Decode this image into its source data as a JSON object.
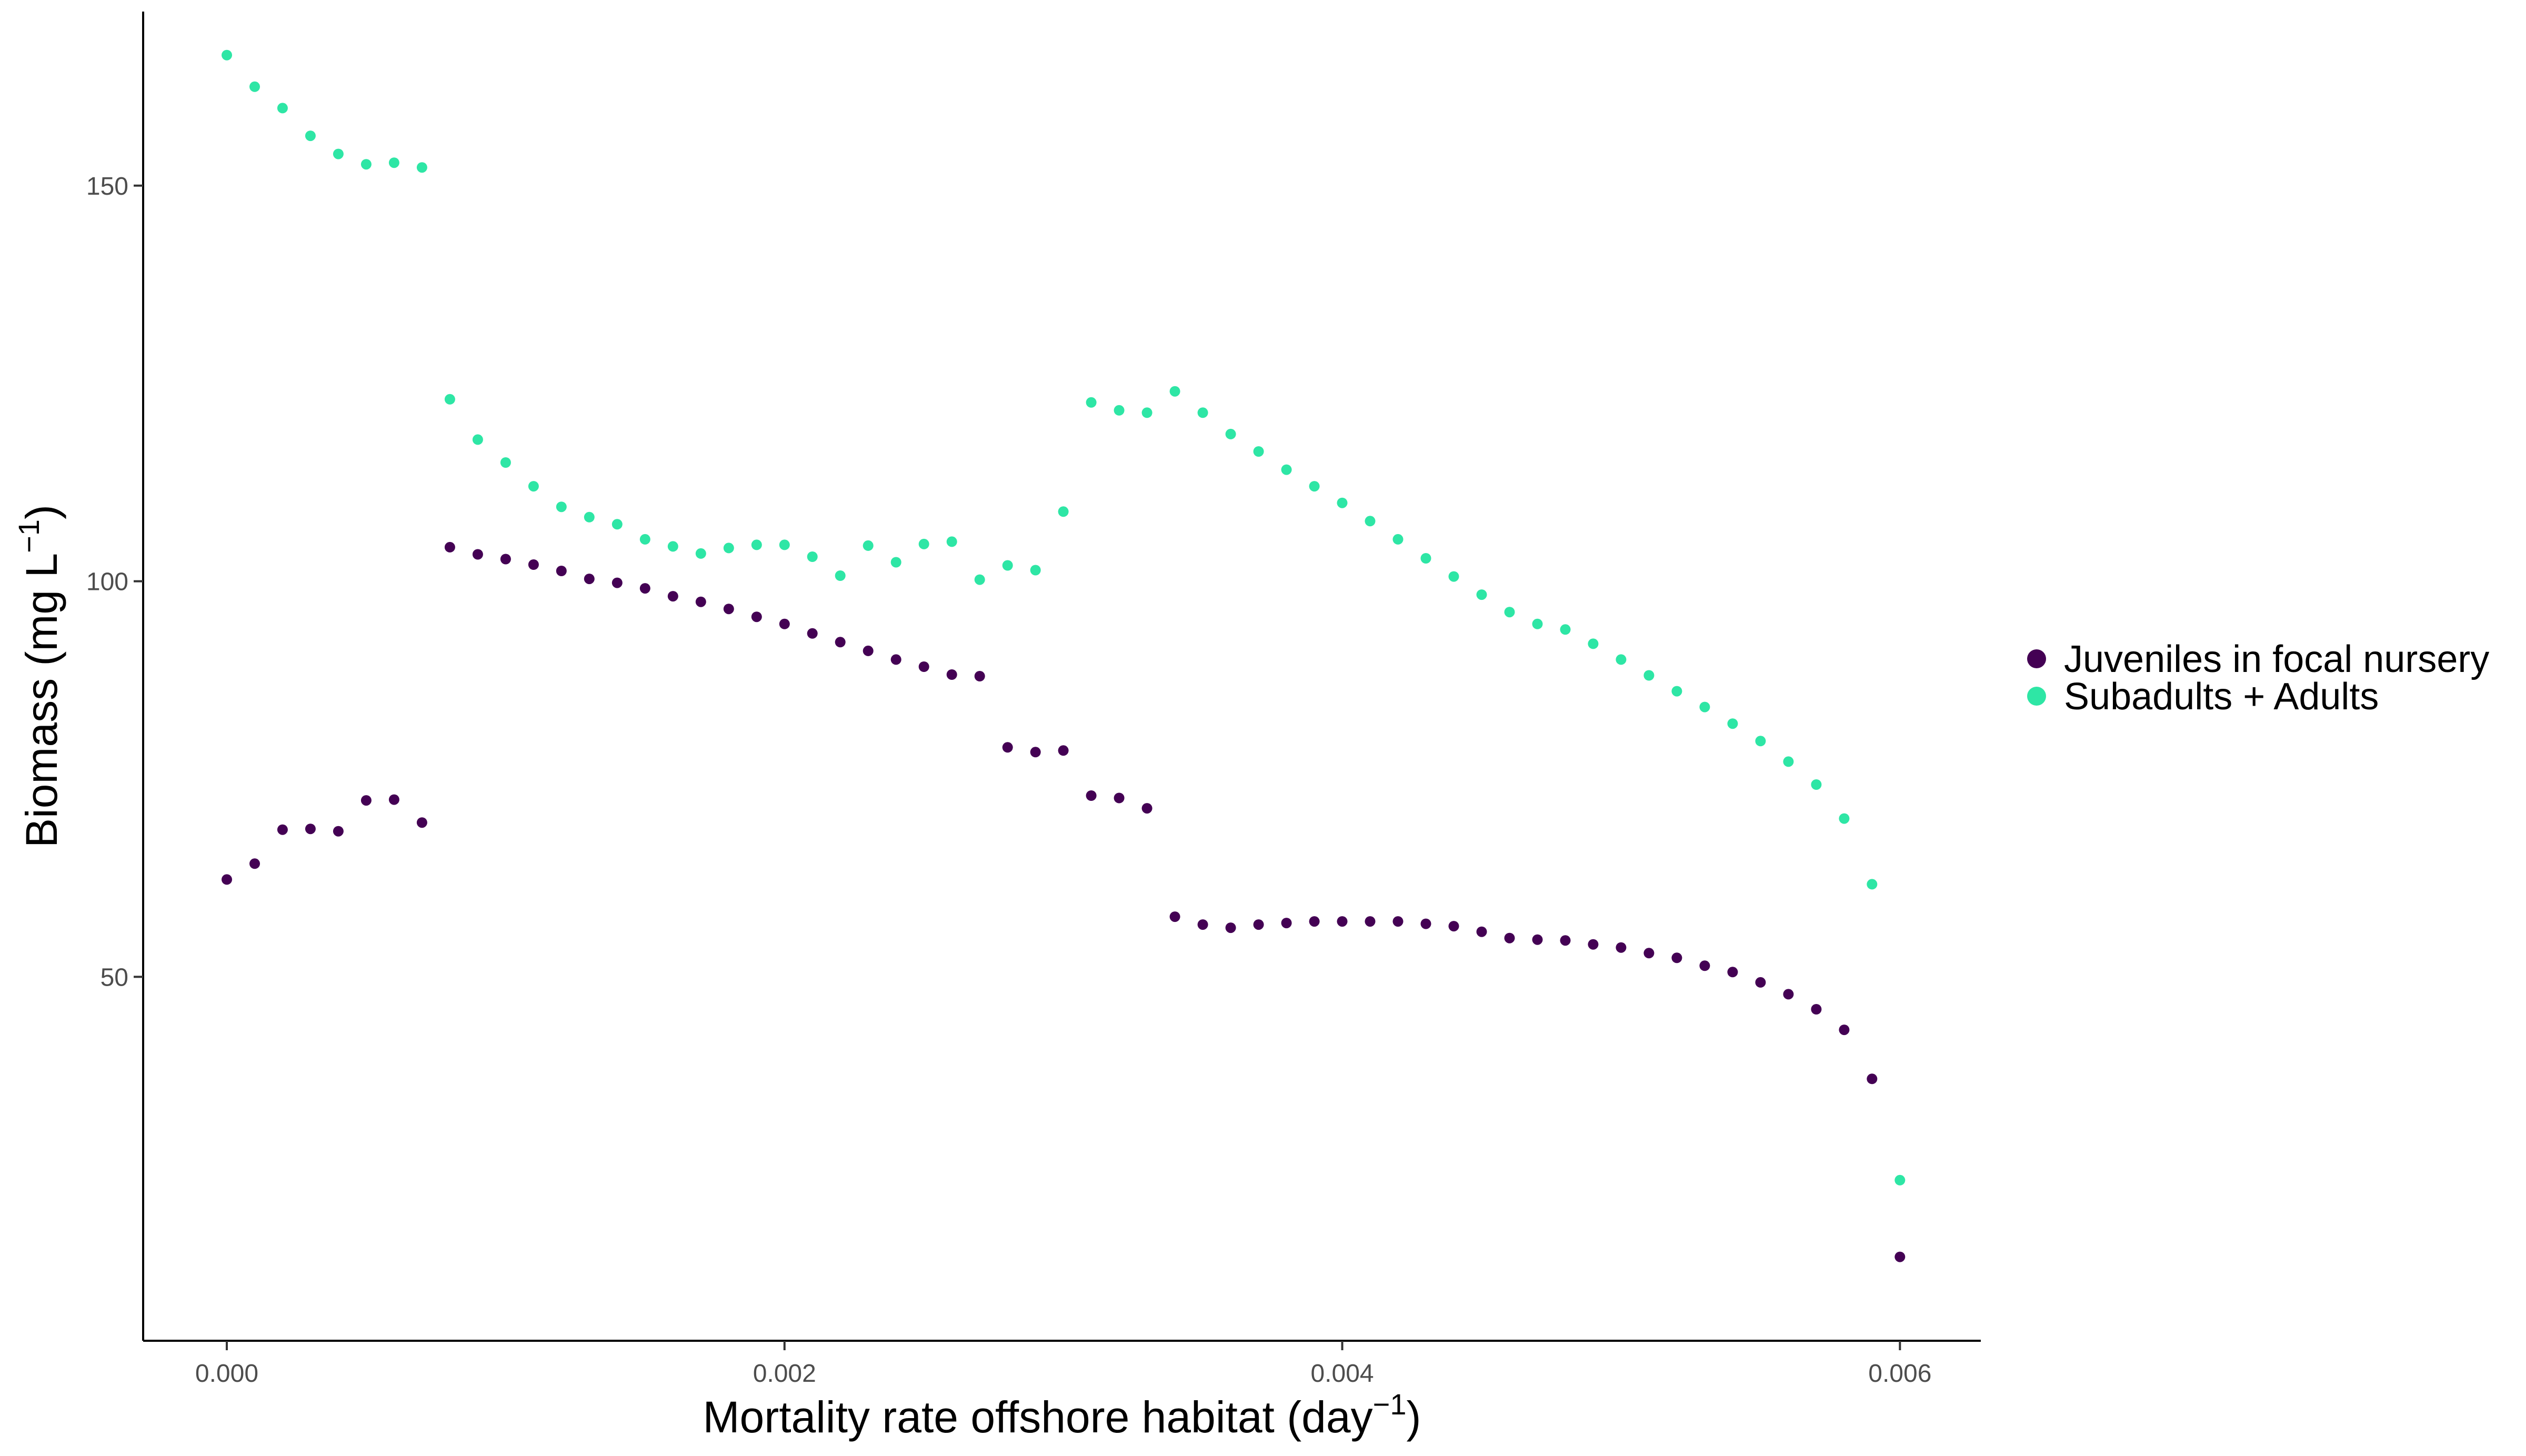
{
  "chart_data": {
    "type": "scatter",
    "xlabel": {
      "prefix": "Mortality rate offshore habitat (day",
      "sup": "−1",
      "suffix": ")"
    },
    "ylabel": {
      "prefix": "Biomass (mg L",
      "sup": "−1",
      "suffix": ")"
    },
    "xlim": [
      -0.0003,
      0.00629
    ],
    "ylim": [
      4,
      172
    ],
    "xticks": [
      0.0,
      0.002,
      0.004,
      0.006
    ],
    "xtick_labels": [
      "0.000",
      "0.002",
      "0.004",
      "0.006"
    ],
    "yticks": [
      50,
      100,
      150
    ],
    "ytick_labels": [
      "50",
      "100",
      "150"
    ],
    "grid": false,
    "legend_position": "right",
    "series": [
      {
        "name": "Juveniles in focal nursery",
        "color": "#440154",
        "points": [
          [
            0.0,
            62.3
          ],
          [
            0.0001,
            64.3
          ],
          [
            0.0002,
            68.6
          ],
          [
            0.0003,
            68.7
          ],
          [
            0.0004,
            68.4
          ],
          [
            0.0005,
            72.3
          ],
          [
            0.0006,
            72.4
          ],
          [
            0.0007,
            69.5
          ],
          [
            0.0008,
            104.3
          ],
          [
            0.0009,
            103.4
          ],
          [
            0.001,
            102.8
          ],
          [
            0.0011,
            102.1
          ],
          [
            0.0012,
            101.3
          ],
          [
            0.0013,
            100.3
          ],
          [
            0.0014,
            99.8
          ],
          [
            0.0015,
            99.1
          ],
          [
            0.0016,
            98.1
          ],
          [
            0.0017,
            97.4
          ],
          [
            0.0018,
            96.5
          ],
          [
            0.0019,
            95.5
          ],
          [
            0.002,
            94.6
          ],
          [
            0.0021,
            93.4
          ],
          [
            0.0022,
            92.3
          ],
          [
            0.0023,
            91.2
          ],
          [
            0.0024,
            90.1
          ],
          [
            0.0025,
            89.2
          ],
          [
            0.0026,
            88.2
          ],
          [
            0.0027,
            88.0
          ],
          [
            0.0028,
            79.0
          ],
          [
            0.0029,
            78.4
          ],
          [
            0.003,
            78.6
          ],
          [
            0.0031,
            72.9
          ],
          [
            0.0032,
            72.6
          ],
          [
            0.0033,
            71.3
          ],
          [
            0.0034,
            57.6
          ],
          [
            0.0035,
            56.6
          ],
          [
            0.0036,
            56.2
          ],
          [
            0.0037,
            56.6
          ],
          [
            0.0038,
            56.8
          ],
          [
            0.0039,
            57.0
          ],
          [
            0.004,
            57.0
          ],
          [
            0.0041,
            57.0
          ],
          [
            0.0042,
            57.0
          ],
          [
            0.0043,
            56.7
          ],
          [
            0.0044,
            56.4
          ],
          [
            0.0045,
            55.7
          ],
          [
            0.0046,
            54.9
          ],
          [
            0.0047,
            54.7
          ],
          [
            0.0048,
            54.6
          ],
          [
            0.0049,
            54.1
          ],
          [
            0.005,
            53.7
          ],
          [
            0.0051,
            53.0
          ],
          [
            0.0052,
            52.4
          ],
          [
            0.0053,
            51.4
          ],
          [
            0.0054,
            50.6
          ],
          [
            0.0055,
            49.3
          ],
          [
            0.0056,
            47.8
          ],
          [
            0.0057,
            45.9
          ],
          [
            0.0058,
            43.3
          ],
          [
            0.0059,
            37.1
          ],
          [
            0.006,
            14.6
          ]
        ]
      },
      {
        "name": "Subadults + Adults",
        "color": "#2ee6a5",
        "points": [
          [
            0.0,
            166.5
          ],
          [
            0.0001,
            162.5
          ],
          [
            0.0002,
            159.8
          ],
          [
            0.0003,
            156.3
          ],
          [
            0.0004,
            154.0
          ],
          [
            0.0005,
            152.7
          ],
          [
            0.0006,
            152.9
          ],
          [
            0.0007,
            152.3
          ],
          [
            0.0008,
            123.0
          ],
          [
            0.0009,
            117.9
          ],
          [
            0.001,
            115.0
          ],
          [
            0.0011,
            112.0
          ],
          [
            0.0012,
            109.4
          ],
          [
            0.0013,
            108.1
          ],
          [
            0.0014,
            107.2
          ],
          [
            0.0015,
            105.3
          ],
          [
            0.0016,
            104.4
          ],
          [
            0.0017,
            103.5
          ],
          [
            0.0018,
            104.2
          ],
          [
            0.0019,
            104.6
          ],
          [
            0.002,
            104.6
          ],
          [
            0.0021,
            103.1
          ],
          [
            0.0022,
            100.7
          ],
          [
            0.0023,
            104.5
          ],
          [
            0.0024,
            102.4
          ],
          [
            0.0025,
            104.7
          ],
          [
            0.0026,
            105.0
          ],
          [
            0.0027,
            100.2
          ],
          [
            0.0028,
            102.0
          ],
          [
            0.0029,
            101.4
          ],
          [
            0.003,
            108.8
          ],
          [
            0.0031,
            122.6
          ],
          [
            0.0032,
            121.6
          ],
          [
            0.0033,
            121.3
          ],
          [
            0.0034,
            124.0
          ],
          [
            0.0035,
            121.3
          ],
          [
            0.0036,
            118.6
          ],
          [
            0.0037,
            116.4
          ],
          [
            0.0038,
            114.1
          ],
          [
            0.0039,
            112.0
          ],
          [
            0.004,
            109.9
          ],
          [
            0.0041,
            107.6
          ],
          [
            0.0042,
            105.3
          ],
          [
            0.0043,
            102.9
          ],
          [
            0.0044,
            100.6
          ],
          [
            0.0045,
            98.3
          ],
          [
            0.0046,
            96.1
          ],
          [
            0.0047,
            94.6
          ],
          [
            0.0048,
            93.9
          ],
          [
            0.0049,
            92.1
          ],
          [
            0.005,
            90.1
          ],
          [
            0.0051,
            88.1
          ],
          [
            0.0052,
            86.1
          ],
          [
            0.0053,
            84.1
          ],
          [
            0.0054,
            82.0
          ],
          [
            0.0055,
            79.8
          ],
          [
            0.0056,
            77.2
          ],
          [
            0.0057,
            74.3
          ],
          [
            0.0058,
            70.0
          ],
          [
            0.0059,
            61.7
          ],
          [
            0.006,
            24.3
          ]
        ]
      }
    ]
  }
}
